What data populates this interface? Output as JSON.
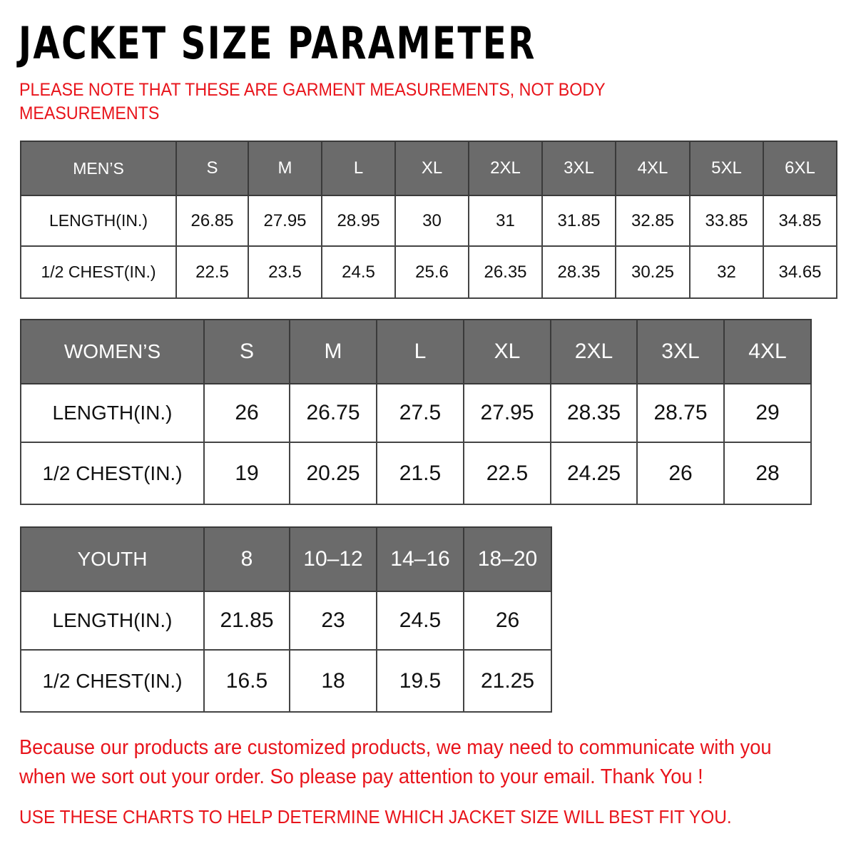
{
  "title": "JACKET SIZE PARAMETER",
  "note": "PLEASE NOTE THAT THESE ARE GARMENT MEASUREMENTS, NOT BODY MEASUREMENTS",
  "colors": {
    "header_bg": "#6b6b6b",
    "accent_red": "#e8141b"
  },
  "tables": {
    "men": {
      "header": [
        "MEN’S",
        "S",
        "M",
        "L",
        "XL",
        "2XL",
        "3XL",
        "4XL",
        "5XL",
        "6XL"
      ],
      "rows": [
        [
          "LENGTH(IN.)",
          "26.85",
          "27.95",
          "28.95",
          "30",
          "31",
          "31.85",
          "32.85",
          "33.85",
          "34.85"
        ],
        [
          "1/2 CHEST(IN.)",
          "22.5",
          "23.5",
          "24.5",
          "25.6",
          "26.35",
          "28.35",
          "30.25",
          "32",
          "34.65"
        ]
      ]
    },
    "women": {
      "header": [
        "WOMEN’S",
        "S",
        "M",
        "L",
        "XL",
        "2XL",
        "3XL",
        "4XL"
      ],
      "rows": [
        [
          "LENGTH(IN.)",
          "26",
          "26.75",
          "27.5",
          "27.95",
          "28.35",
          "28.75",
          "29"
        ],
        [
          "1/2 CHEST(IN.)",
          "19",
          "20.25",
          "21.5",
          "22.5",
          "24.25",
          "26",
          "28"
        ]
      ]
    },
    "youth": {
      "header": [
        "YOUTH",
        "8",
        "10–12",
        "14–16",
        "18–20"
      ],
      "rows": [
        [
          "LENGTH(IN.)",
          "21.85",
          "23",
          "24.5",
          "26"
        ],
        [
          "1/2 CHEST(IN.)",
          "16.5",
          "18",
          "19.5",
          "21.25"
        ]
      ]
    }
  },
  "footer": {
    "message": "Because our products are customized products, we may need to communicate with you when we sort out your order. So please pay attention to your email. Thank You !",
    "instruction": "USE THESE CHARTS TO HELP DETERMINE WHICH JACKET SIZE WILL BEST FIT YOU."
  }
}
